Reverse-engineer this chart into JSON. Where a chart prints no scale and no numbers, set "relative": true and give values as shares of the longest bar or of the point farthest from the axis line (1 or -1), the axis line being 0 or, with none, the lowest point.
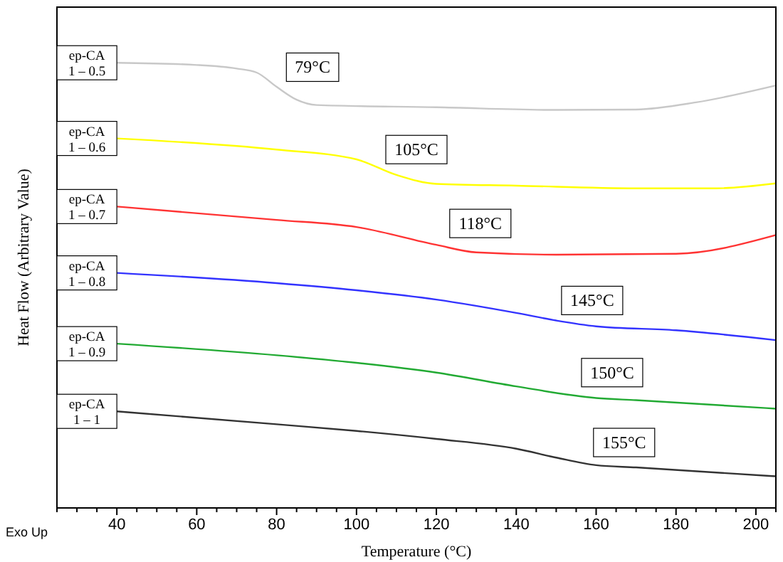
{
  "chart_data": {
    "type": "line",
    "relative": true,
    "xlabel": "Temperature (°C)",
    "ylabel": "Heat Flow (Arbitrary Value)",
    "xlim": [
      25,
      205
    ],
    "xticks": [
      {
        "value": 25,
        "label": null
      },
      {
        "value": 30,
        "label": null
      },
      {
        "value": 35,
        "label": null
      },
      40,
      {
        "value": 45,
        "label": null
      },
      {
        "value": 50,
        "label": null
      },
      {
        "value": 55,
        "label": null
      },
      60,
      {
        "value": 65,
        "label": null
      },
      {
        "value": 70,
        "label": null
      },
      {
        "value": 75,
        "label": null
      },
      80,
      {
        "value": 85,
        "label": null
      },
      {
        "value": 90,
        "label": null
      },
      {
        "value": 95,
        "label": null
      },
      100,
      {
        "value": 105,
        "label": null
      },
      {
        "value": 110,
        "label": null
      },
      {
        "value": 115,
        "label": null
      },
      120,
      {
        "value": 125,
        "label": null
      },
      {
        "value": 130,
        "label": null
      },
      {
        "value": 135,
        "label": null
      },
      140,
      {
        "value": 145,
        "label": null
      },
      {
        "value": 150,
        "label": null
      },
      {
        "value": 155,
        "label": null
      },
      160,
      {
        "value": 165,
        "label": null
      },
      {
        "value": 170,
        "label": null
      },
      {
        "value": 175,
        "label": null
      },
      180,
      {
        "value": 185,
        "label": null
      },
      {
        "value": 190,
        "label": null
      },
      {
        "value": 195,
        "label": null
      },
      200,
      {
        "value": 205,
        "label": null
      }
    ],
    "tick_labels": "x",
    "grid": false,
    "legend": false,
    "line_style": "solid",
    "series": [
      {
        "name": "ep-CA 1 – 0.5",
        "color": "#c8c8c8",
        "x": [
          40,
          60,
          70,
          75,
          80,
          85,
          90,
          120,
          150,
          170,
          185,
          205
        ],
        "values": [
          1.0,
          0.995,
          0.987,
          0.978,
          0.946,
          0.917,
          0.905,
          0.9,
          0.894,
          0.895,
          0.911,
          0.949
        ]
      },
      {
        "name": "ep-CA 1 – 0.6",
        "color": "#ffff00",
        "x": [
          40,
          80,
          100,
          110,
          120,
          140,
          170,
          190,
          205
        ],
        "values": [
          0.83,
          0.805,
          0.783,
          0.748,
          0.728,
          0.724,
          0.718,
          0.718,
          0.729
        ]
      },
      {
        "name": "ep-CA 1 – 0.7",
        "color": "#ff3333",
        "x": [
          40,
          80,
          100,
          120,
          130,
          150,
          180,
          205
        ],
        "values": [
          0.677,
          0.647,
          0.631,
          0.591,
          0.574,
          0.569,
          0.571,
          0.613
        ]
      },
      {
        "name": "ep-CA 1 – 0.8",
        "color": "#3333ff",
        "x": [
          40,
          80,
          100,
          120,
          140,
          150,
          160,
          180,
          205
        ],
        "values": [
          0.528,
          0.505,
          0.489,
          0.468,
          0.438,
          0.421,
          0.408,
          0.399,
          0.377
        ]
      },
      {
        "name": "ep-CA 1 – 0.9",
        "color": "#22aa33",
        "x": [
          40,
          80,
          100,
          120,
          140,
          160,
          170,
          205
        ],
        "values": [
          0.369,
          0.343,
          0.326,
          0.304,
          0.273,
          0.247,
          0.242,
          0.223
        ]
      },
      {
        "name": "ep-CA 1 – 1",
        "color": "#333333",
        "x": [
          40,
          80,
          100,
          120,
          140,
          150,
          160,
          170,
          205
        ],
        "values": [
          0.217,
          0.188,
          0.173,
          0.155,
          0.133,
          0.113,
          0.096,
          0.091,
          0.071
        ]
      }
    ],
    "annotations": [
      {
        "text": "79°C",
        "x": 89,
        "y": 0.99
      },
      {
        "text": "105°C",
        "x": 115,
        "y": 0.805
      },
      {
        "text": "118°C",
        "x": 131,
        "y": 0.639
      },
      {
        "text": "145°C",
        "x": 159,
        "y": 0.466
      },
      {
        "text": "150°C",
        "x": 164,
        "y": 0.304
      },
      {
        "text": "155°C",
        "x": 167,
        "y": 0.147
      },
      "Exo Up"
    ]
  }
}
